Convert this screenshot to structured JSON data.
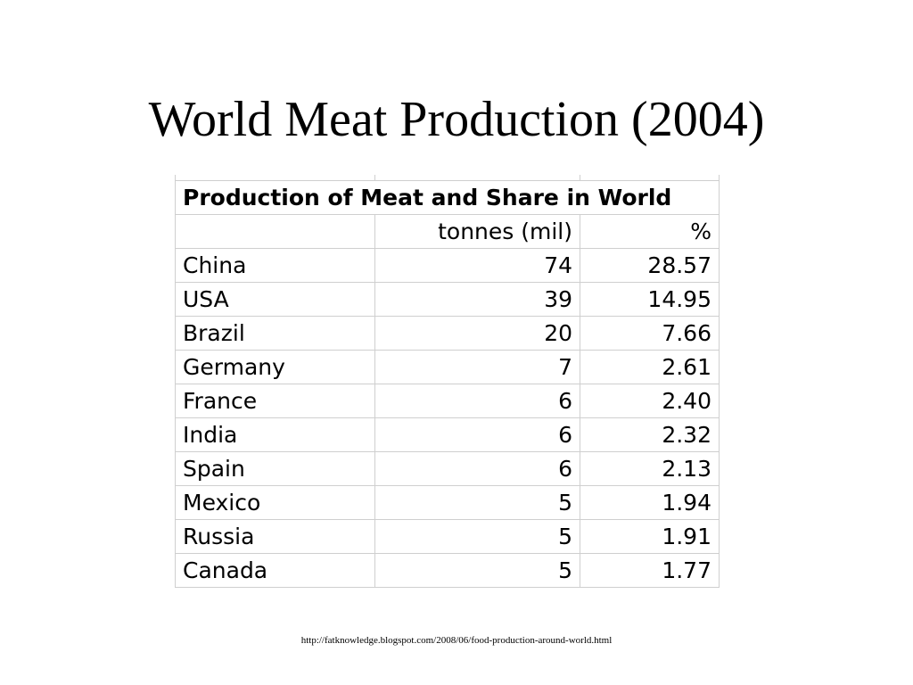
{
  "slide": {
    "title": "World Meat Production (2004)",
    "source": "http://fatknowledge.blogspot.com/2008/06/food-production-around-world.html"
  },
  "table": {
    "heading": "Production of Meat and Share in World",
    "columns": [
      "",
      "tonnes (mil)",
      "%"
    ],
    "rows": [
      {
        "country": "China",
        "tonnes": "74",
        "share": "28.57"
      },
      {
        "country": "USA",
        "tonnes": "39",
        "share": "14.95"
      },
      {
        "country": "Brazil",
        "tonnes": "20",
        "share": "7.66"
      },
      {
        "country": "Germany",
        "tonnes": "7",
        "share": "2.61"
      },
      {
        "country": "France",
        "tonnes": "6",
        "share": "2.40"
      },
      {
        "country": "India",
        "tonnes": "6",
        "share": "2.32"
      },
      {
        "country": "Spain",
        "tonnes": "6",
        "share": "2.13"
      },
      {
        "country": "Mexico",
        "tonnes": "5",
        "share": "1.94"
      },
      {
        "country": "Russia",
        "tonnes": "5",
        "share": "1.91"
      },
      {
        "country": "Canada",
        "tonnes": "5",
        "share": "1.77"
      }
    ]
  }
}
